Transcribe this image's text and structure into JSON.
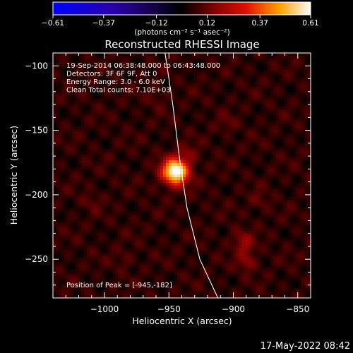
{
  "chart_data": {
    "type": "heatmap",
    "title": "Reconstructed RHESSI Image",
    "xlabel": "Heliocentric X (arcsec)",
    "ylabel": "Heliocentric Y (arcsec)",
    "xlim": [
      -1040,
      -840
    ],
    "ylim": [
      -280,
      -90
    ],
    "x_ticks": [
      {
        "value": -1000,
        "label": "−1000"
      },
      {
        "value": -950,
        "label": "−950"
      },
      {
        "value": -900,
        "label": "−900"
      },
      {
        "value": -850,
        "label": "−850"
      }
    ],
    "y_ticks": [
      {
        "value": -100,
        "label": "−100"
      },
      {
        "value": -150,
        "label": "−150"
      },
      {
        "value": -200,
        "label": "−200"
      },
      {
        "value": -250,
        "label": "−250"
      }
    ],
    "colorbar": {
      "min": -0.61,
      "max": 0.61,
      "ticks": [
        {
          "value": -0.61,
          "label": "−0.61"
        },
        {
          "value": -0.37,
          "label": "−0.37"
        },
        {
          "value": -0.12,
          "label": "−0.12"
        },
        {
          "value": 0.12,
          "label": "0.12"
        },
        {
          "value": 0.37,
          "label": "0.37"
        },
        {
          "value": 0.61,
          "label": "0.61"
        }
      ],
      "unit_label": "(photons cm⁻² s⁻¹ asec⁻²)"
    },
    "info_lines": [
      "19-Sep-2014 06:38:48.000 to 06:43:48.000",
      "Detectors: 3F 6F 9F, Att 0",
      "Energy Range: 3.0 - 6.0 keV",
      "Clean     Total counts: 7.10E+03"
    ],
    "peak_label": "Position of Peak = [-945,-182]",
    "peak": {
      "x": -945,
      "y": -182
    },
    "limb_curve": [
      {
        "x": -953,
        "y": -90
      },
      {
        "x": -947,
        "y": -130
      },
      {
        "x": -942,
        "y": -170
      },
      {
        "x": -936,
        "y": -210
      },
      {
        "x": -926,
        "y": -250
      },
      {
        "x": -912,
        "y": -280
      }
    ],
    "sources": [
      {
        "x": -945,
        "y": -182,
        "amp": 0.61
      },
      {
        "x": -935,
        "y": -168,
        "amp": 0.08
      },
      {
        "x": -895,
        "y": -233,
        "amp": 0.08
      },
      {
        "x": -890,
        "y": -252,
        "amp": 0.12
      },
      {
        "x": -890,
        "y": -240,
        "amp": 0.1
      },
      {
        "x": -880,
        "y": -205,
        "amp": 0.06
      },
      {
        "x": -905,
        "y": -145,
        "amp": 0.05
      },
      {
        "x": -985,
        "y": -250,
        "amp": 0.05
      },
      {
        "x": -1010,
        "y": -205,
        "amp": 0.05
      },
      {
        "x": -960,
        "y": -125,
        "amp": 0.05
      }
    ]
  },
  "timestamp": "17-May-2022 08:42"
}
